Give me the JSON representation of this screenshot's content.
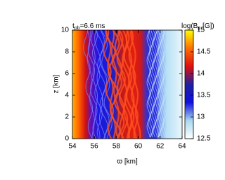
{
  "chart_data": {
    "type": "image",
    "title": [
      "t",
      "pb",
      "=6.6 ms"
    ],
    "x_label": "ϖ [km]",
    "y_label": "z [km]",
    "colorbar_label": [
      "log(B",
      "p",
      " [G])"
    ],
    "xlim": [
      54,
      64
    ],
    "xticks": [
      54,
      56,
      58,
      60,
      62,
      64
    ],
    "ylim": [
      0,
      10
    ],
    "yticks": [
      0,
      2,
      4,
      6,
      8,
      10
    ],
    "clim": [
      12.5,
      15
    ],
    "cticks": [
      12.5,
      13,
      13.5,
      14,
      14.5,
      15
    ],
    "colormap": [
      "#ffffff",
      "#a8d8f0",
      "#1010e0",
      "#2020a0",
      "#e01010",
      "#ff7000",
      "#ffff00"
    ]
  }
}
